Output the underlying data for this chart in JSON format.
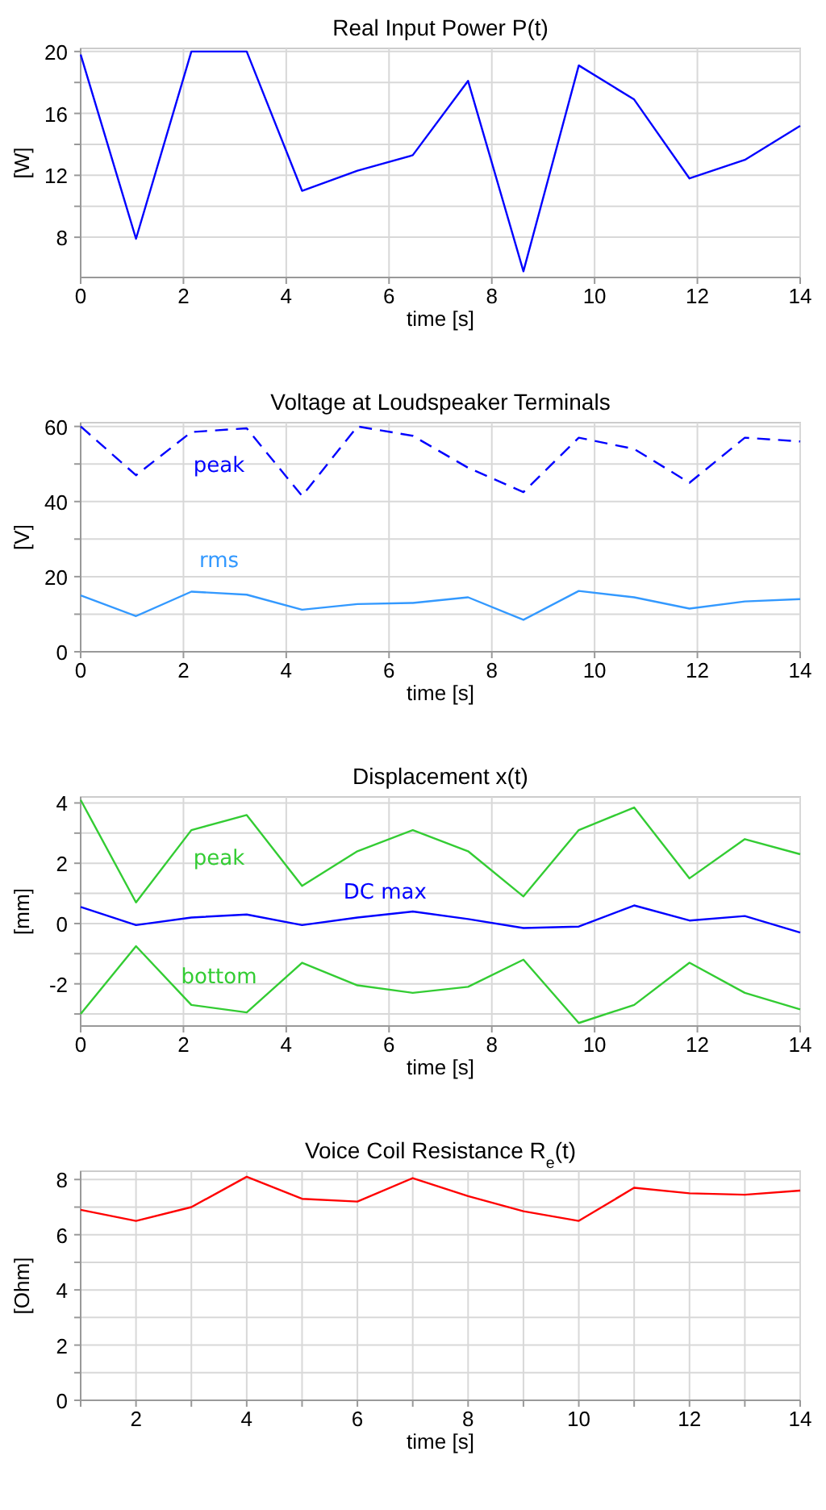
{
  "chart_data": [
    {
      "type": "line",
      "title": "Real Input Power P(t)",
      "xlabel": "time [s]",
      "ylabel": "[W]",
      "x": [
        0,
        1.077,
        2.154,
        3.231,
        4.308,
        5.385,
        6.462,
        7.538,
        8.615,
        9.692,
        10.769,
        11.846,
        12.923,
        14
      ],
      "series": [
        {
          "color": "#0000ff",
          "values": [
            19.8,
            7.9,
            20.0,
            20.0,
            11.0,
            12.3,
            13.3,
            18.1,
            5.8,
            19.1,
            16.9,
            11.8,
            13.0,
            15.2
          ]
        }
      ],
      "xlim": [
        0,
        14
      ],
      "xticks": [
        0,
        2,
        4,
        6,
        8,
        10,
        12,
        14
      ],
      "ylim": [
        5.4,
        20.2
      ],
      "yticks": [
        8,
        {
          "value": 10,
          "label": null
        },
        12,
        {
          "value": 14,
          "label": null
        },
        16,
        {
          "value": 18,
          "label": null
        },
        20
      ],
      "grid": true
    },
    {
      "type": "line",
      "title": "Voltage at Loudspeaker Terminals",
      "xlabel": "time [s]",
      "ylabel": "[V]",
      "x": [
        0,
        1.077,
        2.154,
        3.231,
        4.308,
        5.385,
        6.462,
        7.538,
        8.615,
        9.692,
        10.769,
        11.846,
        12.923,
        14
      ],
      "series": [
        {
          "name": "peak",
          "color": "#0000ff",
          "line_style": "dashed",
          "values": [
            60,
            47,
            58.5,
            59.5,
            41.5,
            60,
            57.5,
            49,
            42.5,
            57,
            54,
            45,
            57,
            56
          ]
        },
        {
          "name": "rms",
          "color": "#3399ff",
          "values": [
            15,
            9.5,
            16,
            15.2,
            11.2,
            12.7,
            13,
            14.5,
            8.5,
            16.2,
            14.5,
            11.5,
            13.4,
            14
          ]
        }
      ],
      "xlim": [
        0,
        14
      ],
      "xticks": [
        0,
        2,
        4,
        6,
        8,
        10,
        12,
        14
      ],
      "ylim": [
        0,
        61
      ],
      "yticks": [
        0,
        {
          "value": 10,
          "label": null
        },
        20,
        {
          "value": 30,
          "label": null
        },
        40,
        {
          "value": 50,
          "label": null
        },
        60
      ],
      "grid": true
    },
    {
      "type": "line",
      "title": "Displacement x(t)",
      "xlabel": "time [s]",
      "ylabel": "[mm]",
      "x": [
        0,
        1.077,
        2.154,
        3.231,
        4.308,
        5.385,
        6.462,
        7.538,
        8.615,
        9.692,
        10.769,
        11.846,
        12.923,
        14
      ],
      "series": [
        {
          "name": "peak",
          "color": "#33cc33",
          "values": [
            4.1,
            0.7,
            3.1,
            3.6,
            1.25,
            2.4,
            3.1,
            2.4,
            0.9,
            3.1,
            3.85,
            1.5,
            2.8,
            2.3
          ]
        },
        {
          "name": "DC max",
          "color": "#0000ff",
          "values": [
            0.55,
            -0.05,
            0.2,
            0.3,
            -0.05,
            0.2,
            0.4,
            0.15,
            -0.15,
            -0.1,
            0.6,
            0.1,
            0.25,
            -0.3
          ]
        },
        {
          "name": "bottom",
          "color": "#33cc33",
          "values": [
            -3.0,
            -0.75,
            -2.7,
            -2.95,
            -1.3,
            -2.05,
            -2.3,
            -2.1,
            -1.2,
            -3.3,
            -2.7,
            -1.3,
            -2.3,
            -2.85
          ]
        }
      ],
      "xlim": [
        0,
        14
      ],
      "xticks": [
        0,
        2,
        4,
        6,
        8,
        10,
        12,
        14
      ],
      "ylim": [
        -3.4,
        4.2
      ],
      "yticks": [
        {
          "value": -3,
          "label": null
        },
        -2,
        {
          "value": -1,
          "label": null
        },
        0,
        {
          "value": 1,
          "label": null
        },
        2,
        {
          "value": 3,
          "label": null
        },
        4
      ],
      "grid": true
    },
    {
      "type": "line",
      "title": "Voice Coil Resistance R$_{e}$(t)",
      "xlabel": "time [s]",
      "ylabel": "[Ohm]",
      "x": [
        1,
        2,
        3,
        4,
        5,
        6,
        7,
        8,
        9,
        10,
        11,
        12,
        13,
        14
      ],
      "series": [
        {
          "color": "#ff0000",
          "values": [
            6.9,
            6.5,
            7.0,
            8.1,
            7.3,
            7.2,
            8.05,
            7.4,
            6.85,
            6.5,
            7.7,
            7.5,
            7.45,
            7.6
          ]
        }
      ],
      "xlim": [
        1,
        14
      ],
      "xticks": [
        {
          "value": 1,
          "label": null
        },
        2,
        {
          "value": 3,
          "label": null
        },
        4,
        {
          "value": 5,
          "label": null
        },
        6,
        {
          "value": 7,
          "label": null
        },
        8,
        {
          "value": 9,
          "label": null
        },
        10,
        {
          "value": 11,
          "label": null
        },
        12,
        {
          "value": 13,
          "label": null
        },
        14
      ],
      "ylim": [
        0,
        8.3
      ],
      "yticks": [
        0,
        {
          "value": 1,
          "label": null
        },
        2,
        {
          "value": 3,
          "label": null
        },
        4,
        {
          "value": 5,
          "label": null
        },
        6,
        {
          "value": 7,
          "label": null
        },
        8
      ],
      "grid": true
    }
  ]
}
